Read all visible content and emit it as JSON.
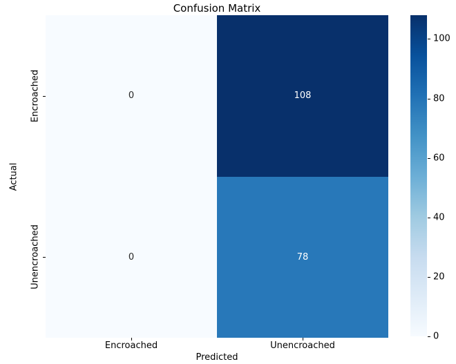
{
  "chart_data": {
    "type": "heatmap",
    "title": "Confusion Matrix",
    "xlabel": "Predicted",
    "ylabel": "Actual",
    "x_categories": [
      "Encroached",
      "Unencroached"
    ],
    "y_categories": [
      "Encroached",
      "Unencroached"
    ],
    "values": [
      [
        0,
        108
      ],
      [
        0,
        78
      ]
    ],
    "vmin": 0,
    "vmax": 108,
    "colormap": "Blues",
    "colorbar_ticks": [
      0,
      20,
      40,
      60,
      80,
      100
    ],
    "colorbar_position": "right",
    "grid": false,
    "cell_colors": [
      [
        "#f7fbff",
        "#08306b"
      ],
      [
        "#f7fbff",
        "#2878b9"
      ]
    ],
    "cell_text_colors": [
      [
        "#262626",
        "#ffffff"
      ],
      [
        "#262626",
        "#ffffff"
      ]
    ],
    "colormap_stops": [
      "#f7fbff",
      "#deebf7",
      "#c6dbef",
      "#9ecae1",
      "#6baed6",
      "#4292c6",
      "#2171b5",
      "#08519c",
      "#08306b"
    ],
    "background_color": "#ffffff",
    "text_color": "#000000"
  }
}
